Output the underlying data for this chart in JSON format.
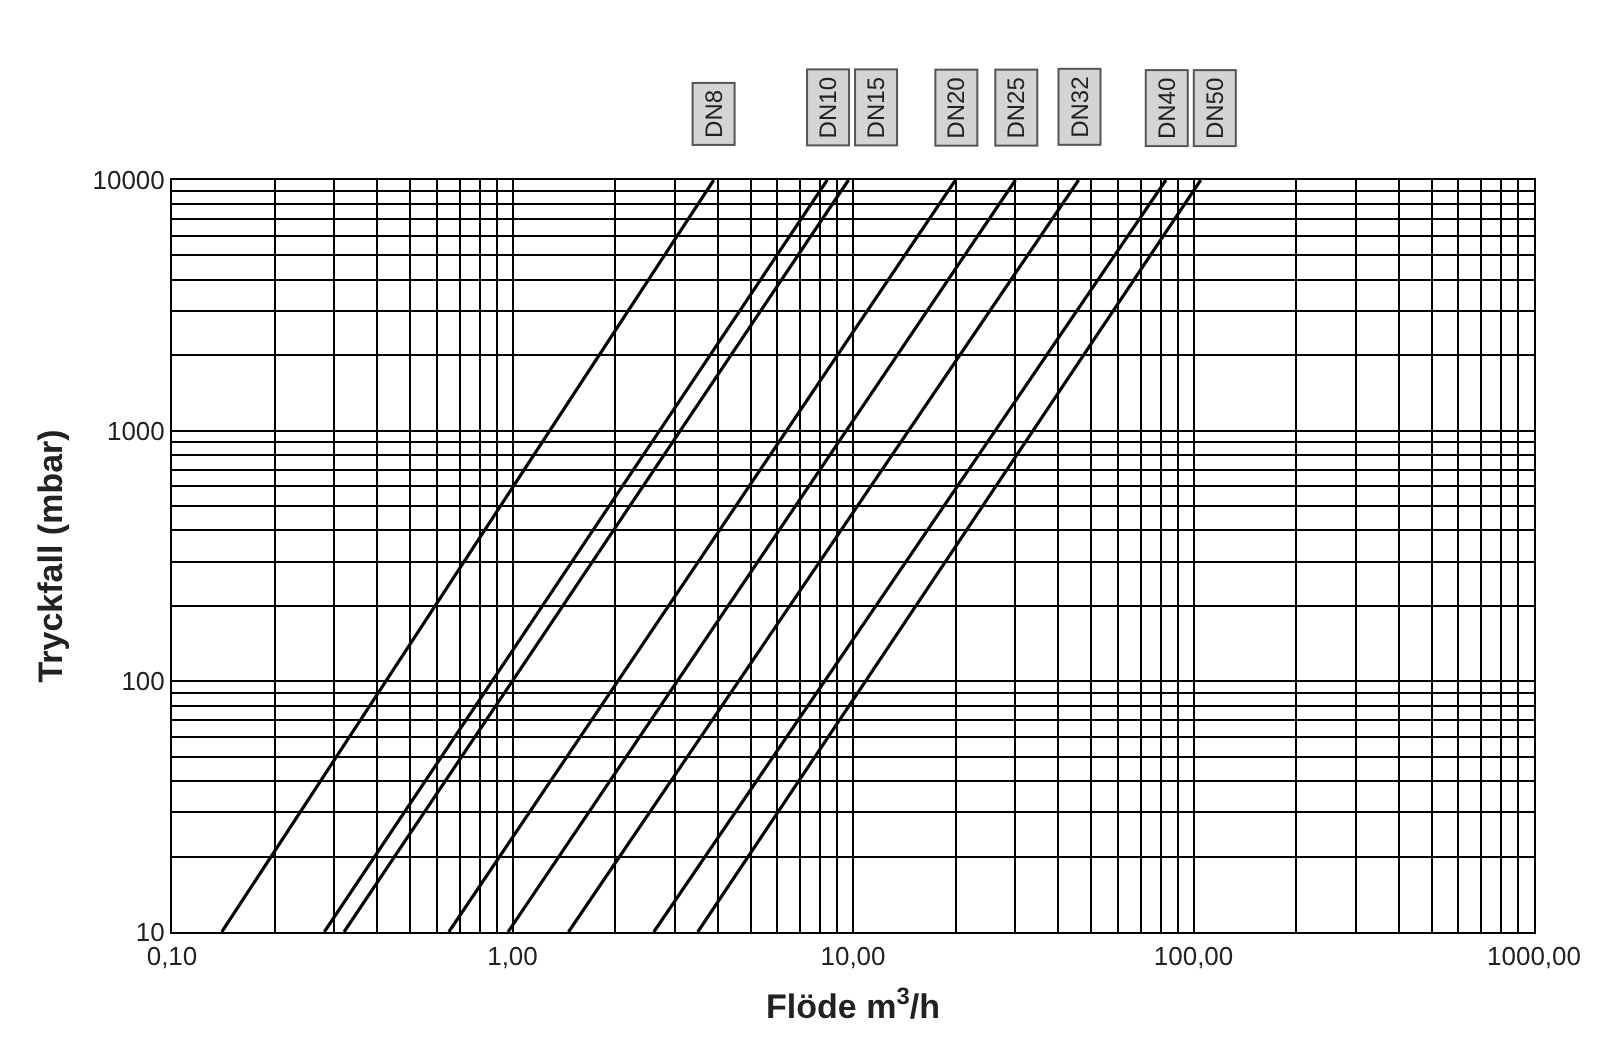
{
  "chart_data": {
    "type": "line",
    "xlabel": "Flöde m$^{3}$/h",
    "ylabel": "Tryckfall (mbar)",
    "log": "xy",
    "grid": true,
    "legend": false,
    "marker": "none",
    "line_style": "solid",
    "xlim": [
      0.1,
      1000
    ],
    "ylim": [
      10,
      10000
    ],
    "xticks": [
      {
        "value": 0.1,
        "label": "0,10"
      },
      {
        "value": 1,
        "label": "1,00"
      },
      {
        "value": 10,
        "label": "10,00"
      },
      {
        "value": 100,
        "label": "100,00"
      },
      {
        "value": 1000,
        "label": "1000,00"
      }
    ],
    "yticks": [
      10,
      100,
      1000,
      10000
    ],
    "series": [
      {
        "name": "DN8",
        "color": "#000000",
        "x": [
          0.14,
          3.9
        ],
        "values": [
          10,
          10000
        ]
      },
      {
        "name": "DN10",
        "color": "#000000",
        "x": [
          0.28,
          8.4
        ],
        "values": [
          10,
          10000
        ]
      },
      {
        "name": "DN15",
        "color": "#000000",
        "x": [
          0.32,
          9.7
        ],
        "values": [
          10,
          10000
        ]
      },
      {
        "name": "DN20",
        "color": "#000000",
        "x": [
          0.65,
          20
        ],
        "values": [
          10,
          10000
        ]
      },
      {
        "name": "DN25",
        "color": "#000000",
        "x": [
          0.97,
          30
        ],
        "values": [
          10,
          10000
        ]
      },
      {
        "name": "DN32",
        "color": "#000000",
        "x": [
          1.46,
          46
        ],
        "values": [
          10,
          10000
        ]
      },
      {
        "name": "DN40",
        "color": "#000000",
        "x": [
          2.6,
          83
        ],
        "values": [
          10,
          10000
        ]
      },
      {
        "name": "DN50",
        "color": "#000000",
        "x": [
          3.5,
          105
        ],
        "values": [
          10,
          10000
        ]
      }
    ]
  }
}
